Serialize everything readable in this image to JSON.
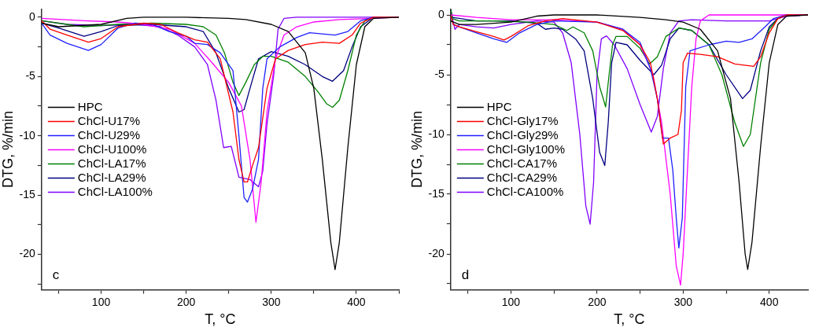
{
  "chart_data": [
    {
      "type": "line",
      "xlabel": "T, °C",
      "ylabel": "DTG, %/min",
      "legend": "left",
      "annotations": [
        "c"
      ],
      "xlim": [
        30,
        450
      ],
      "ylim": [
        -23,
        0.7
      ],
      "xticks": [
        {
          "value": 50,
          "label": null
        },
        100,
        {
          "value": 150,
          "label": null
        },
        200,
        {
          "value": 250,
          "label": null
        },
        300,
        {
          "value": 350,
          "label": null
        },
        400,
        {
          "value": 450,
          "label": null
        }
      ],
      "yticks": [
        {
          "value": -22.5,
          "label": null
        },
        -20,
        {
          "value": -17.5,
          "label": null
        },
        -15,
        {
          "value": -12.5,
          "label": null
        },
        -10,
        {
          "value": -7.5,
          "label": null
        },
        -5,
        {
          "value": -2.5,
          "label": null
        },
        0
      ],
      "series": [
        {
          "name": "HPC",
          "color": "#000000",
          "x": [
            30,
            50,
            100,
            130,
            150,
            200,
            250,
            270,
            300,
            320,
            340,
            350,
            360,
            370,
            375,
            380,
            390,
            400,
            410,
            420,
            450
          ],
          "values": [
            -0.5,
            -0.8,
            -0.6,
            -0.1,
            0,
            0,
            -0.1,
            -0.2,
            -0.6,
            -1.2,
            -3,
            -6,
            -12,
            -19,
            -21.3,
            -19,
            -11,
            -4,
            -0.8,
            -0.1,
            0
          ]
        },
        {
          "name": "ChCl-U17%",
          "color": "#ff0000",
          "x": [
            30,
            40,
            60,
            85,
            100,
            120,
            150,
            170,
            190,
            210,
            225,
            240,
            255,
            262,
            268,
            272,
            278,
            285,
            295,
            305,
            320,
            340,
            360,
            380,
            395,
            405,
            420,
            450
          ],
          "values": [
            -0.3,
            -1,
            -1.5,
            -2.1,
            -1.8,
            -0.8,
            -0.5,
            -0.6,
            -1.3,
            -1.9,
            -2.1,
            -3.5,
            -8,
            -12,
            -13.9,
            -13.9,
            -12.5,
            -11,
            -6,
            -3.5,
            -2.8,
            -2.3,
            -2.1,
            -2.2,
            -1.5,
            -0.5,
            0,
            0
          ]
        },
        {
          "name": "ChCl-U29%",
          "color": "#2020ff",
          "x": [
            30,
            40,
            60,
            85,
            100,
            120,
            140,
            160,
            180,
            200,
            210,
            225,
            240,
            255,
            262,
            268,
            272,
            278,
            285,
            290,
            295,
            310,
            330,
            345,
            360,
            375,
            390,
            405,
            420,
            450
          ],
          "values": [
            -0.5,
            -1.5,
            -2.2,
            -2.8,
            -2.3,
            -0.9,
            -0.5,
            -0.6,
            -1.2,
            -1.6,
            -2.2,
            -2.3,
            -3,
            -4.5,
            -10,
            -15.2,
            -15.6,
            -14.5,
            -12,
            -6,
            -3.5,
            -2.5,
            -1.7,
            -1.3,
            -1.4,
            -1.5,
            -1.2,
            -0.3,
            0,
            0
          ]
        },
        {
          "name": "ChCl-U100%",
          "color": "#ff00ff",
          "x": [
            30,
            80,
            120,
            150,
            180,
            210,
            230,
            250,
            265,
            275,
            282,
            288,
            295,
            305,
            315,
            330,
            350,
            380,
            420,
            450
          ],
          "values": [
            -0.1,
            -0.3,
            -0.4,
            -0.6,
            -1,
            -2.2,
            -3.8,
            -5.5,
            -7.5,
            -12,
            -17.3,
            -14,
            -8,
            -3.5,
            -1.5,
            -0.8,
            -0.4,
            -0.2,
            -0.1,
            0
          ]
        },
        {
          "name": "ChCl-LA17%",
          "color": "#008000",
          "x": [
            30,
            60,
            80,
            120,
            160,
            200,
            220,
            235,
            245,
            255,
            262,
            270,
            280,
            290,
            300,
            320,
            340,
            355,
            365,
            372,
            380,
            390,
            400,
            410,
            420,
            450
          ],
          "values": [
            -0.3,
            -0.6,
            -0.8,
            -0.6,
            -0.5,
            -0.6,
            -0.8,
            -1.5,
            -3,
            -5.5,
            -6.6,
            -5.5,
            -4,
            -3.3,
            -3.3,
            -3.8,
            -5,
            -6.3,
            -7.3,
            -7.6,
            -7,
            -4.5,
            -1.5,
            -0.3,
            0,
            0
          ]
        },
        {
          "name": "ChCl-LA29%",
          "color": "#000080",
          "x": [
            30,
            50,
            80,
            100,
            120,
            160,
            200,
            220,
            235,
            250,
            262,
            268,
            275,
            285,
            300,
            320,
            340,
            360,
            372,
            385,
            395,
            405,
            420,
            450
          ],
          "values": [
            -0.5,
            -0.9,
            -1.6,
            -1.2,
            -0.7,
            -0.6,
            -0.8,
            -1.2,
            -3,
            -6,
            -8,
            -7.8,
            -6,
            -3.5,
            -2.9,
            -3.3,
            -4,
            -5,
            -5.4,
            -4.5,
            -2.5,
            -0.8,
            0,
            0
          ]
        },
        {
          "name": "ChCl-LA100%",
          "color": "#8000ff",
          "x": [
            30,
            60,
            100,
            140,
            170,
            190,
            210,
            225,
            235,
            244,
            253,
            262,
            275,
            285,
            290,
            295,
            303,
            308,
            315,
            330,
            450
          ],
          "values": [
            -0.3,
            -0.6,
            -0.7,
            -0.6,
            -0.8,
            -1.5,
            -2.5,
            -4,
            -7,
            -11,
            -10.9,
            -13.5,
            -13.7,
            -14.3,
            -13,
            -9,
            -4.8,
            -1,
            -0.1,
            0,
            0
          ]
        }
      ]
    },
    {
      "type": "line",
      "xlabel": "T, °C",
      "ylabel": "DTG, %/min",
      "legend": "left",
      "annotations": [
        "d"
      ],
      "xlim": [
        30,
        445
      ],
      "ylim": [
        -23,
        0.5
      ],
      "xticks": [
        {
          "value": 50,
          "label": null
        },
        100,
        {
          "value": 150,
          "label": null
        },
        200,
        {
          "value": 250,
          "label": null
        },
        300,
        {
          "value": 350,
          "label": null
        },
        400
      ],
      "yticks": [
        {
          "value": -22.5,
          "label": null
        },
        -20,
        {
          "value": -17.5,
          "label": null
        },
        -15,
        {
          "value": -12.5,
          "label": null
        },
        -10,
        {
          "value": -7.5,
          "label": null
        },
        -5,
        {
          "value": -2.5,
          "label": null
        },
        0
      ],
      "series": [
        {
          "name": "HPC",
          "color": "#000000",
          "x": [
            30,
            40,
            60,
            100,
            130,
            150,
            200,
            250,
            280,
            300,
            320,
            340,
            355,
            365,
            372,
            375,
            380,
            390,
            400,
            410,
            420,
            445
          ],
          "values": [
            -0.5,
            -0.8,
            -0.8,
            -0.6,
            -0.1,
            0,
            0,
            -0.2,
            -0.4,
            -0.6,
            -1.2,
            -3,
            -7,
            -14,
            -20,
            -21.3,
            -19,
            -11,
            -4,
            -0.8,
            -0.1,
            0
          ]
        },
        {
          "name": "ChCl-Gly17%",
          "color": "#ff0000",
          "x": [
            30,
            33,
            40,
            60,
            80,
            92,
            100,
            120,
            140,
            160,
            200,
            230,
            250,
            262,
            270,
            277,
            285,
            294,
            298,
            300,
            305,
            320,
            340,
            360,
            382,
            390,
            400,
            410,
            420,
            445
          ],
          "values": [
            0,
            -0.8,
            -1,
            -1.4,
            -1.8,
            -2.1,
            -1.8,
            -0.9,
            -0.5,
            -0.3,
            -0.6,
            -1.3,
            -2.5,
            -4,
            -7,
            -10.8,
            -10.3,
            -10,
            -8,
            -4,
            -3.2,
            -3.3,
            -3.5,
            -4.1,
            -4.3,
            -3.5,
            -1.5,
            -0.3,
            0,
            0
          ]
        },
        {
          "name": "ChCl-Gly29%",
          "color": "#2020ff",
          "x": [
            30,
            33,
            40,
            60,
            80,
            95,
            110,
            130,
            150,
            200,
            230,
            250,
            262,
            270,
            276,
            283,
            288,
            292,
            295,
            299,
            303,
            308,
            330,
            350,
            365,
            380,
            395,
            405,
            420,
            445
          ],
          "values": [
            0,
            -0.8,
            -1,
            -1.5,
            -2,
            -2.3,
            -1.5,
            -0.8,
            -0.5,
            -0.6,
            -1.2,
            -2.3,
            -4.5,
            -7,
            -10.3,
            -10.3,
            -13,
            -17,
            -19.5,
            -17,
            -6,
            -3,
            -2.5,
            -2.2,
            -2.3,
            -2,
            -1,
            -0.3,
            0,
            0
          ]
        },
        {
          "name": "ChCl-Gly100%",
          "color": "#ff00ff",
          "x": [
            30,
            60,
            100,
            150,
            200,
            230,
            250,
            265,
            275,
            285,
            292,
            297,
            300,
            305,
            310,
            315,
            320,
            330,
            445
          ],
          "values": [
            0,
            -0.2,
            -0.4,
            -0.4,
            -0.6,
            -1.2,
            -2.5,
            -5,
            -9,
            -15,
            -21,
            -22.6,
            -20,
            -13,
            -6,
            -2,
            -0.5,
            0,
            0
          ]
        },
        {
          "name": "ChCl-CA17%",
          "color": "#008000",
          "x": [
            30,
            32,
            40,
            80,
            120,
            150,
            165,
            172,
            185,
            195,
            203,
            210,
            214,
            218,
            222,
            235,
            250,
            261,
            270,
            280,
            295,
            310,
            330,
            345,
            360,
            370,
            378,
            390,
            400,
            410,
            420,
            445
          ],
          "values": [
            0.5,
            -0.3,
            -0.5,
            -0.5,
            -0.6,
            -0.8,
            -1.3,
            -1,
            -1.5,
            -3,
            -6,
            -7.7,
            -5,
            -2.5,
            -1.8,
            -1.8,
            -2.8,
            -4.1,
            -3.5,
            -1.8,
            -1.1,
            -1.3,
            -2.5,
            -5,
            -9,
            -11,
            -10,
            -4,
            -1.2,
            -0.3,
            0,
            0
          ]
        },
        {
          "name": "ChCl-CA29%",
          "color": "#000080",
          "x": [
            30,
            32,
            60,
            100,
            130,
            140,
            150,
            160,
            175,
            185,
            195,
            203,
            209,
            213,
            217,
            222,
            235,
            250,
            266,
            275,
            285,
            295,
            310,
            330,
            350,
            369,
            378,
            390,
            400,
            410,
            420,
            445
          ],
          "values": [
            0.5,
            -0.2,
            -0.5,
            -0.5,
            -0.7,
            -1.2,
            -1.1,
            -1.2,
            -2,
            -3,
            -7,
            -11.5,
            -12.6,
            -9,
            -4,
            -2.3,
            -2.5,
            -3.8,
            -5,
            -4.2,
            -2,
            -1.1,
            -1.3,
            -2.5,
            -5,
            -7,
            -6.3,
            -3,
            -1,
            -0.3,
            0,
            0
          ]
        },
        {
          "name": "ChCl-CA100%",
          "color": "#8000ff",
          "x": [
            30,
            35,
            40,
            60,
            80,
            100,
            130,
            150,
            160,
            170,
            180,
            187,
            192,
            196,
            200,
            205,
            211,
            220,
            235,
            250,
            263,
            270,
            277,
            285,
            295,
            310,
            350,
            400,
            420,
            445
          ],
          "values": [
            0.3,
            -1.2,
            -0.8,
            -1,
            -1.1,
            -0.8,
            -0.5,
            -0.6,
            -1.5,
            -4,
            -10,
            -16,
            -17.5,
            -14,
            -5,
            -2,
            -1.75,
            -2.5,
            -4.5,
            -7.5,
            -9.8,
            -8.5,
            -4.5,
            -1.5,
            -0.5,
            -0.4,
            -0.5,
            -0.5,
            -0.1,
            0
          ]
        }
      ]
    }
  ]
}
